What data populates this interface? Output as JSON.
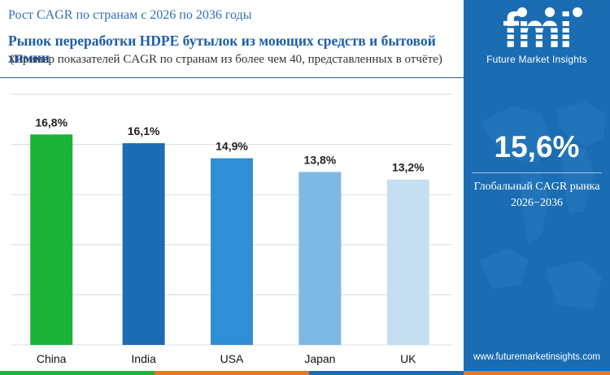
{
  "header": {
    "heading": "Рост CAGR по странам с 2026 по 2036 годы",
    "title": "Рынок переработки HDPE бутылок из моющих средств и бытовой химии",
    "subtitle": "(Пример показателей CAGR по странам из более чем 40, представленных в отчёте)"
  },
  "chart_data": {
    "type": "bar",
    "categories": [
      "China",
      "India",
      "USA",
      "Japan",
      "UK"
    ],
    "values": [
      16.8,
      16.1,
      14.9,
      13.8,
      13.2
    ],
    "value_labels": [
      "16,8%",
      "16,1%",
      "14,9%",
      "13,8%",
      "13,2%"
    ],
    "bar_colors": [
      "#1db33a",
      "#1a6cb3",
      "#2f8fd6",
      "#7cb8e1",
      "#c5dff2"
    ],
    "ylim": [
      0,
      20
    ],
    "grid": true,
    "legend": "none"
  },
  "panel": {
    "logo_text": "fmi",
    "brand": "Future Market Insights",
    "global_cagr": "15,6%",
    "global_label_line1": "Глобальный CAGR рынка",
    "global_label_line2": "2026−2036",
    "website": "www.futuremarketinsights.com",
    "background": "#1a6cb3"
  },
  "bottom_strip_colors": [
    "#1db33a",
    "#e87722",
    "#1a6cb3",
    "#e87722"
  ]
}
